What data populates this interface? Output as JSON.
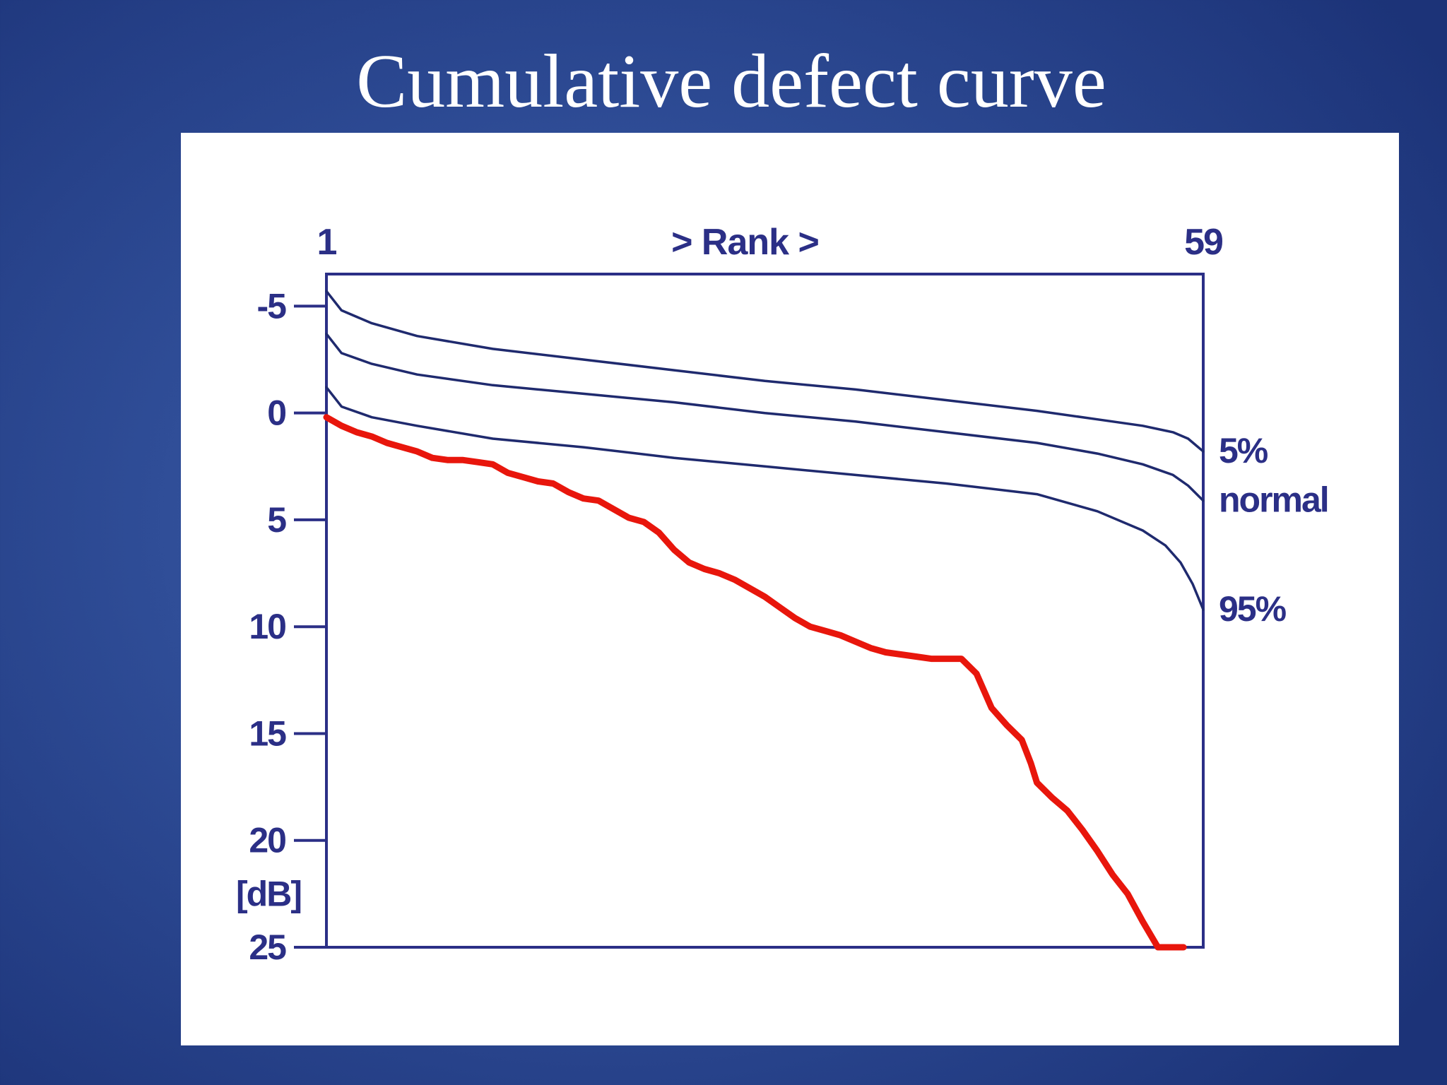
{
  "slide": {
    "title": "Cumulative defect curve"
  },
  "chart_data": {
    "type": "line",
    "title": "",
    "xlabel": "> Rank >",
    "ylabel": "[dB]",
    "x_ticks": [
      "1",
      "59"
    ],
    "xlim": [
      1,
      59
    ],
    "y_ticks": [
      "-5",
      "0",
      "5",
      "10",
      "15",
      "20",
      "25"
    ],
    "ylim": [
      -6.5,
      25
    ],
    "y_inverted": true,
    "grid": false,
    "legend": "right-end labels",
    "colors": {
      "axis": "#2b2f86",
      "reference_lines": "#1f2a6e",
      "patient_curve": "#e8160c"
    },
    "series": [
      {
        "name": "5%",
        "x": [
          1,
          2,
          4,
          7,
          12,
          18,
          24,
          30,
          36,
          42,
          48,
          52,
          55,
          57,
          58,
          59
        ],
        "y": [
          -5.7,
          -4.8,
          -4.2,
          -3.6,
          -3.0,
          -2.5,
          -2.0,
          -1.5,
          -1.1,
          -0.6,
          -0.1,
          0.3,
          0.6,
          0.9,
          1.2,
          1.8
        ]
      },
      {
        "name": "normal",
        "x": [
          1,
          2,
          4,
          7,
          12,
          18,
          24,
          30,
          36,
          42,
          48,
          52,
          55,
          57,
          58,
          59
        ],
        "y": [
          -3.7,
          -2.8,
          -2.3,
          -1.8,
          -1.3,
          -0.9,
          -0.5,
          0.0,
          0.4,
          0.9,
          1.4,
          1.9,
          2.4,
          2.9,
          3.4,
          4.1
        ]
      },
      {
        "name": "95%",
        "x": [
          1,
          2,
          4,
          7,
          12,
          18,
          24,
          30,
          36,
          42,
          48,
          52,
          55,
          56.5,
          57.5,
          58.3,
          59
        ],
        "y": [
          -1.2,
          -0.3,
          0.2,
          0.6,
          1.2,
          1.6,
          2.1,
          2.5,
          2.9,
          3.3,
          3.8,
          4.6,
          5.5,
          6.2,
          7.0,
          8.0,
          9.2
        ]
      },
      {
        "name": "",
        "x": [
          1,
          2,
          3,
          4,
          5,
          6,
          7,
          8,
          9,
          10,
          11,
          12,
          13,
          14,
          15,
          16,
          17,
          18,
          19,
          20,
          21,
          22,
          23,
          24,
          25,
          26,
          27,
          28,
          29,
          30,
          31,
          32,
          33,
          34,
          35,
          36,
          37,
          38,
          39,
          40,
          41,
          42,
          43,
          44,
          45,
          46,
          47,
          47.6,
          48,
          49,
          50,
          51,
          52,
          53,
          54,
          55,
          56,
          57,
          57.7
        ],
        "y": [
          0.2,
          0.6,
          0.9,
          1.1,
          1.4,
          1.6,
          1.8,
          2.1,
          2.2,
          2.2,
          2.3,
          2.4,
          2.8,
          3.0,
          3.2,
          3.3,
          3.7,
          4.0,
          4.1,
          4.5,
          4.9,
          5.1,
          5.6,
          6.4,
          7.0,
          7.3,
          7.5,
          7.8,
          8.2,
          8.6,
          9.1,
          9.6,
          10.0,
          10.2,
          10.4,
          10.7,
          11.0,
          11.2,
          11.3,
          11.4,
          11.5,
          11.5,
          11.5,
          12.2,
          13.8,
          14.6,
          15.3,
          16.4,
          17.3,
          18.0,
          18.6,
          19.5,
          20.5,
          21.6,
          22.5,
          23.8,
          25.0,
          25.0,
          25.0
        ]
      }
    ]
  }
}
